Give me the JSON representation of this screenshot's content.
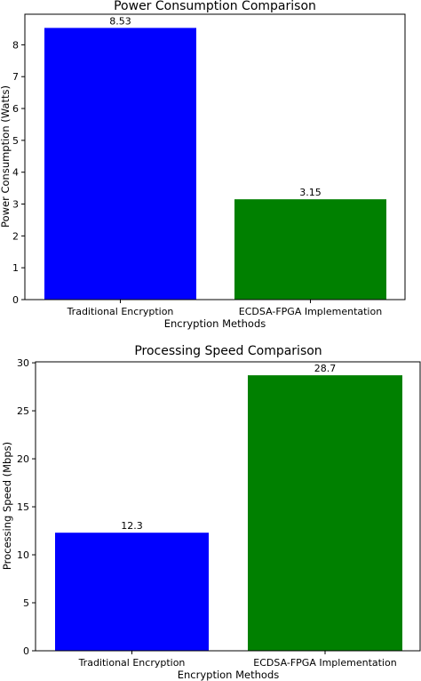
{
  "chart_data": [
    {
      "type": "bar",
      "title": "Power Consumption Comparison",
      "xlabel": "Encryption Methods",
      "ylabel": "Power Consumption (Watts)",
      "categories": [
        "Traditional Encryption",
        "ECDSA-FPGA Implementation"
      ],
      "values": [
        8.53,
        3.15
      ],
      "value_labels": [
        "8.53",
        "3.15"
      ],
      "colors": [
        "#0000ff",
        "#008000"
      ],
      "ylim": [
        0,
        8.96
      ],
      "yticks": [
        0,
        1,
        2,
        3,
        4,
        5,
        6,
        7,
        8
      ]
    },
    {
      "type": "bar",
      "title": "Processing Speed Comparison",
      "xlabel": "Encryption Methods",
      "ylabel": "Processing Speed (Mbps)",
      "categories": [
        "Traditional Encryption",
        "ECDSA-FPGA Implementation"
      ],
      "values": [
        12.3,
        28.7
      ],
      "value_labels": [
        "12.3",
        "28.7"
      ],
      "colors": [
        "#0000ff",
        "#008000"
      ],
      "ylim": [
        0,
        30.1
      ],
      "yticks": [
        0,
        5,
        10,
        15,
        20,
        25,
        30
      ]
    }
  ]
}
